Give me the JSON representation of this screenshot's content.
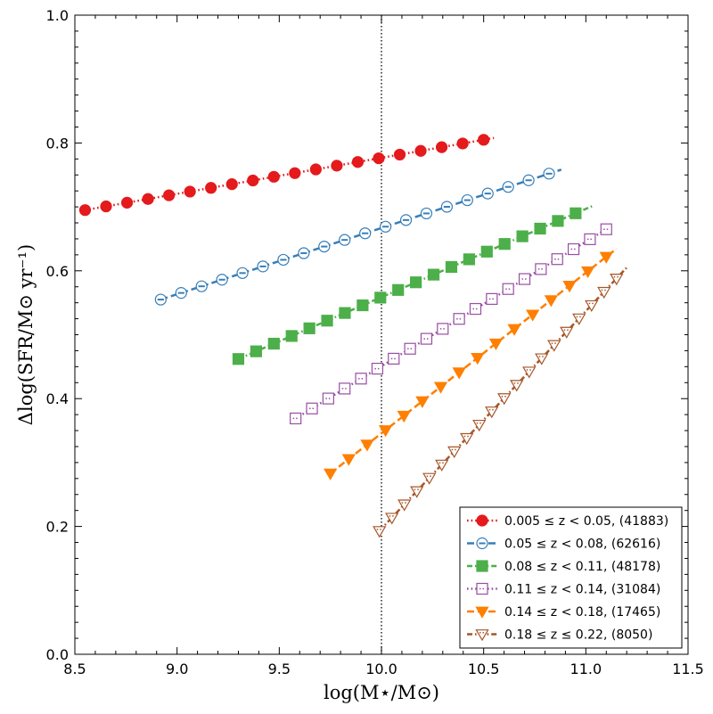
{
  "chart_data": {
    "type": "line",
    "xlabel": "log(M⋆/M⊙)",
    "ylabel": "Δlog(SFR/M⊙ yr⁻¹)",
    "xlim": [
      8.5,
      11.5
    ],
    "ylim": [
      0.0,
      1.0
    ],
    "x_ticks": [
      "8.5",
      "9.0",
      "9.5",
      "10.0",
      "10.5",
      "11.0",
      "11.5"
    ],
    "y_ticks": [
      "0.0",
      "0.2",
      "0.4",
      "0.6",
      "0.8",
      "1.0"
    ],
    "vline_x": 10.0,
    "legend_position": "bottom-right",
    "series": [
      {
        "name": "0.005 ≤ z < 0.05, (41883)",
        "color": "#e41a1c",
        "marker": "circle",
        "filled": true,
        "line": "dotted",
        "x_start": 8.55,
        "x_end": 10.5,
        "n": 20,
        "y_start": 0.695,
        "y_end": 0.805,
        "line_x_end": 10.55
      },
      {
        "name": "0.05 ≤ z < 0.08, (62616)",
        "color": "#377eb8",
        "marker": "circle-dot",
        "filled": false,
        "line": "dashed",
        "x_start": 8.92,
        "x_end": 10.82,
        "n": 20,
        "y_start": 0.555,
        "y_end": 0.752,
        "line_x_end": 10.88
      },
      {
        "name": "0.08 ≤ z < 0.11, (48178)",
        "color": "#4daf4a",
        "marker": "square",
        "filled": true,
        "line": "dashdot",
        "x_start": 9.3,
        "x_end": 10.95,
        "n": 20,
        "y_start": 0.462,
        "y_end": 0.69,
        "line_x_end": 11.03
      },
      {
        "name": "0.11 ≤ z < 0.14, (31084)",
        "color": "#984ea3",
        "marker": "square",
        "filled": false,
        "line": "dotted",
        "x_start": 9.58,
        "x_end": 11.1,
        "n": 20,
        "y_start": 0.369,
        "y_end": 0.665,
        "line_x_end": 11.1
      },
      {
        "name": "0.14 ≤ z < 0.18, (17465)",
        "color": "#ff7f00",
        "marker": "triangle-down",
        "filled": true,
        "line": "dashed",
        "x_start": 9.75,
        "x_end": 11.1,
        "n": 16,
        "y_start": 0.283,
        "y_end": 0.622,
        "line_x_end": 11.15
      },
      {
        "name": "0.18 ≤ z ≤ 0.22, (8050)",
        "color": "#a65628",
        "marker": "triangle-down",
        "filled": false,
        "line": "dashdot",
        "x_start": 9.99,
        "x_end": 11.15,
        "n": 20,
        "y_start": 0.193,
        "y_end": 0.588,
        "line_x_end": 11.2
      }
    ]
  }
}
